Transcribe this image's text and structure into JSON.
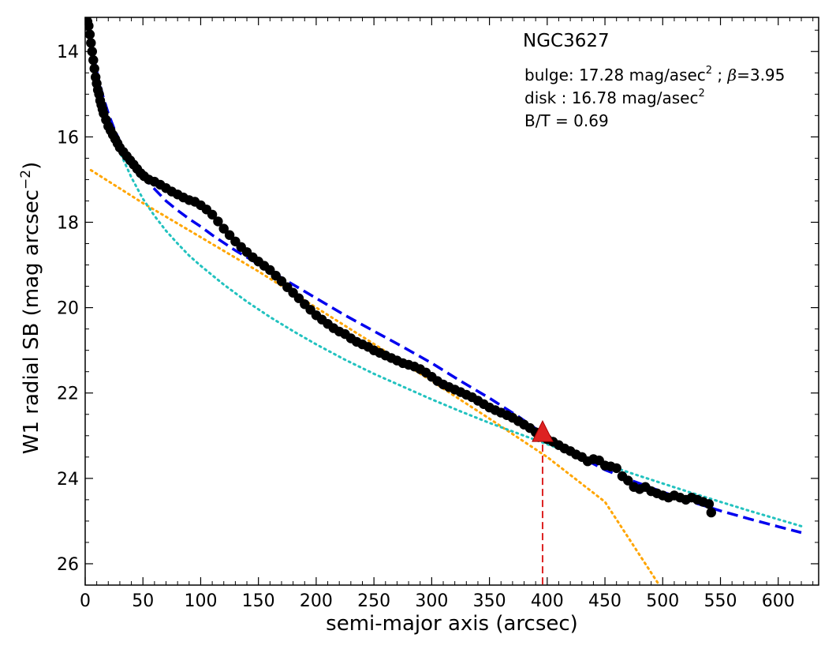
{
  "chart_data": {
    "type": "scatter",
    "title": "NGC3627",
    "xlabel": "semi-major axis (arcsec)",
    "ylabel_main": "W1 radial SB (mag arcsec",
    "ylabel_sup": "−2",
    "ylabel_close": ")",
    "xlim": [
      0,
      635
    ],
    "ylim": [
      26.5,
      13.2
    ],
    "y_inverted": true,
    "x_ticks": [
      0,
      50,
      100,
      150,
      200,
      250,
      300,
      350,
      400,
      450,
      500,
      550,
      600
    ],
    "x_tick_labels": [
      "0",
      "50",
      "100",
      "150",
      "200",
      "250",
      "300",
      "350",
      "400",
      "450",
      "500",
      "550",
      "600"
    ],
    "y_ticks": [
      14,
      16,
      18,
      20,
      22,
      24,
      26
    ],
    "y_tick_labels": [
      "14",
      "16",
      "18",
      "20",
      "22",
      "24",
      "26"
    ],
    "annotations": {
      "bulge_prefix": "bulge: 17.28 mag/asec",
      "bulge_sup": "2",
      "bulge_suffix_a": " ; ",
      "bulge_beta": "β",
      "bulge_suffix_b": "=3.95",
      "disk_prefix": "disk  : 16.78 mag/asec",
      "disk_sup": "2",
      "bt": "B/T = 0.69"
    },
    "observed_points": [
      [
        1,
        13.2
      ],
      [
        2,
        13.3
      ],
      [
        3,
        13.4
      ],
      [
        4,
        13.6
      ],
      [
        5,
        13.8
      ],
      [
        6,
        14.0
      ],
      [
        7,
        14.2
      ],
      [
        8,
        14.4
      ],
      [
        9,
        14.6
      ],
      [
        10,
        14.75
      ],
      [
        11,
        14.9
      ],
      [
        12,
        15.0
      ],
      [
        13,
        15.15
      ],
      [
        14,
        15.25
      ],
      [
        15,
        15.35
      ],
      [
        16,
        15.45
      ],
      [
        18,
        15.6
      ],
      [
        20,
        15.75
      ],
      [
        22,
        15.85
      ],
      [
        24,
        15.95
      ],
      [
        26,
        16.05
      ],
      [
        28,
        16.15
      ],
      [
        30,
        16.25
      ],
      [
        33,
        16.35
      ],
      [
        36,
        16.45
      ],
      [
        39,
        16.55
      ],
      [
        42,
        16.65
      ],
      [
        45,
        16.75
      ],
      [
        48,
        16.85
      ],
      [
        51,
        16.92
      ],
      [
        55,
        17.0
      ],
      [
        60,
        17.05
      ],
      [
        65,
        17.12
      ],
      [
        70,
        17.2
      ],
      [
        75,
        17.28
      ],
      [
        80,
        17.35
      ],
      [
        85,
        17.42
      ],
      [
        90,
        17.48
      ],
      [
        95,
        17.52
      ],
      [
        100,
        17.6
      ],
      [
        105,
        17.7
      ],
      [
        110,
        17.82
      ],
      [
        115,
        17.98
      ],
      [
        120,
        18.15
      ],
      [
        125,
        18.3
      ],
      [
        130,
        18.45
      ],
      [
        135,
        18.58
      ],
      [
        140,
        18.7
      ],
      [
        145,
        18.82
      ],
      [
        150,
        18.92
      ],
      [
        155,
        19.02
      ],
      [
        160,
        19.12
      ],
      [
        165,
        19.25
      ],
      [
        170,
        19.38
      ],
      [
        175,
        19.52
      ],
      [
        180,
        19.65
      ],
      [
        185,
        19.78
      ],
      [
        190,
        19.92
      ],
      [
        195,
        20.05
      ],
      [
        200,
        20.18
      ],
      [
        205,
        20.28
      ],
      [
        210,
        20.38
      ],
      [
        215,
        20.48
      ],
      [
        220,
        20.56
      ],
      [
        225,
        20.62
      ],
      [
        230,
        20.72
      ],
      [
        235,
        20.8
      ],
      [
        240,
        20.86
      ],
      [
        245,
        20.92
      ],
      [
        250,
        21.0
      ],
      [
        255,
        21.06
      ],
      [
        260,
        21.12
      ],
      [
        265,
        21.18
      ],
      [
        270,
        21.24
      ],
      [
        275,
        21.3
      ],
      [
        280,
        21.34
      ],
      [
        285,
        21.38
      ],
      [
        290,
        21.44
      ],
      [
        295,
        21.52
      ],
      [
        300,
        21.62
      ],
      [
        305,
        21.72
      ],
      [
        310,
        21.8
      ],
      [
        315,
        21.86
      ],
      [
        320,
        21.92
      ],
      [
        325,
        21.98
      ],
      [
        330,
        22.04
      ],
      [
        335,
        22.1
      ],
      [
        340,
        22.18
      ],
      [
        345,
        22.26
      ],
      [
        350,
        22.34
      ],
      [
        355,
        22.4
      ],
      [
        360,
        22.46
      ],
      [
        365,
        22.52
      ],
      [
        370,
        22.58
      ],
      [
        375,
        22.66
      ],
      [
        380,
        22.74
      ],
      [
        385,
        22.82
      ],
      [
        390,
        22.92
      ],
      [
        395,
        23.0
      ],
      [
        400,
        23.08
      ],
      [
        405,
        23.14
      ],
      [
        410,
        23.22
      ],
      [
        415,
        23.3
      ],
      [
        420,
        23.36
      ],
      [
        425,
        23.44
      ],
      [
        430,
        23.5
      ],
      [
        435,
        23.6
      ],
      [
        440,
        23.55
      ],
      [
        445,
        23.58
      ],
      [
        450,
        23.7
      ],
      [
        455,
        23.72
      ],
      [
        460,
        23.76
      ],
      [
        465,
        23.95
      ],
      [
        470,
        24.05
      ],
      [
        475,
        24.2
      ],
      [
        480,
        24.25
      ],
      [
        485,
        24.2
      ],
      [
        490,
        24.3
      ],
      [
        495,
        24.35
      ],
      [
        500,
        24.4
      ],
      [
        505,
        24.45
      ],
      [
        510,
        24.4
      ],
      [
        515,
        24.45
      ],
      [
        520,
        24.5
      ],
      [
        525,
        24.45
      ],
      [
        530,
        24.5
      ],
      [
        535,
        24.55
      ],
      [
        540,
        24.6
      ],
      [
        542,
        24.8
      ]
    ],
    "model_points": [
      [
        2,
        13.3
      ],
      [
        5,
        13.8
      ],
      [
        8,
        14.2
      ],
      [
        12,
        14.7
      ],
      [
        16,
        15.1
      ],
      [
        20,
        15.45
      ],
      [
        25,
        15.8
      ],
      [
        30,
        16.1
      ],
      [
        40,
        16.55
      ],
      [
        50,
        16.92
      ],
      [
        60,
        17.22
      ],
      [
        70,
        17.5
      ],
      [
        80,
        17.72
      ],
      [
        90,
        17.92
      ],
      [
        100,
        18.1
      ],
      [
        110,
        18.3
      ],
      [
        120,
        18.48
      ],
      [
        130,
        18.66
      ],
      [
        140,
        18.82
      ],
      [
        150,
        18.98
      ],
      [
        175,
        19.38
      ],
      [
        200,
        19.78
      ],
      [
        225,
        20.18
      ],
      [
        250,
        20.55
      ],
      [
        275,
        20.92
      ],
      [
        300,
        21.3
      ],
      [
        325,
        21.72
      ],
      [
        350,
        22.12
      ],
      [
        375,
        22.55
      ],
      [
        400,
        23.02
      ],
      [
        425,
        23.45
      ],
      [
        450,
        23.8
      ],
      [
        475,
        24.07
      ],
      [
        500,
        24.32
      ],
      [
        525,
        24.55
      ],
      [
        550,
        24.76
      ],
      [
        575,
        24.95
      ],
      [
        600,
        25.13
      ],
      [
        620,
        25.27
      ]
    ],
    "bulge_points": [
      [
        5,
        13.8
      ],
      [
        10,
        14.6
      ],
      [
        15,
        15.15
      ],
      [
        20,
        15.6
      ],
      [
        25,
        16.0
      ],
      [
        30,
        16.35
      ],
      [
        40,
        16.95
      ],
      [
        50,
        17.45
      ],
      [
        60,
        17.85
      ],
      [
        70,
        18.2
      ],
      [
        80,
        18.5
      ],
      [
        90,
        18.78
      ],
      [
        100,
        19.02
      ],
      [
        120,
        19.46
      ],
      [
        140,
        19.86
      ],
      [
        160,
        20.22
      ],
      [
        180,
        20.55
      ],
      [
        200,
        20.86
      ],
      [
        225,
        21.22
      ],
      [
        250,
        21.55
      ],
      [
        275,
        21.85
      ],
      [
        300,
        22.15
      ],
      [
        325,
        22.43
      ],
      [
        350,
        22.7
      ],
      [
        375,
        22.95
      ],
      [
        400,
        23.2
      ],
      [
        425,
        23.44
      ],
      [
        450,
        23.67
      ],
      [
        475,
        23.9
      ],
      [
        500,
        24.12
      ],
      [
        525,
        24.34
      ],
      [
        550,
        24.55
      ],
      [
        575,
        24.76
      ],
      [
        600,
        24.96
      ],
      [
        620,
        25.12
      ]
    ],
    "disk_points": [
      [
        5,
        16.78
      ],
      [
        50,
        17.55
      ],
      [
        100,
        18.35
      ],
      [
        150,
        19.15
      ],
      [
        200,
        20.0
      ],
      [
        250,
        20.85
      ],
      [
        300,
        21.72
      ],
      [
        350,
        22.6
      ],
      [
        400,
        23.5
      ],
      [
        450,
        24.55
      ],
      [
        497,
        26.5
      ]
    ],
    "transition": {
      "x": 396,
      "y": 22.95
    },
    "colors": {
      "observed": "#000000",
      "model": "#0000ee",
      "bulge": "#22c2bf",
      "disk": "#ffa500",
      "marker": "#dd2222",
      "marker_edge": "#aa0000",
      "axes": "#000000"
    }
  }
}
